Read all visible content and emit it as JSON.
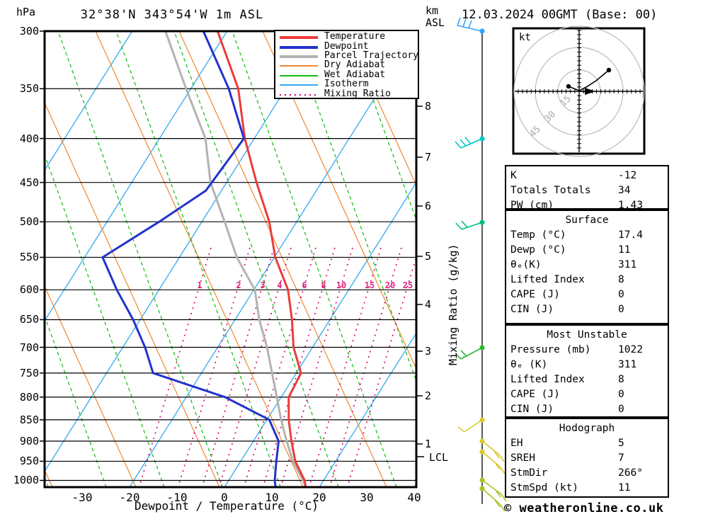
{
  "header": {
    "pressure_unit": "hPa",
    "title": "32°38'N 343°54'W 1m ASL",
    "altitude_unit_line1": "km",
    "altitude_unit_line2": "ASL",
    "date": "12.03.2024 00GMT (Base: 00)"
  },
  "legend": [
    {
      "label": "Temperature",
      "color": "#EE3B3B",
      "width": 4,
      "dash": ""
    },
    {
      "label": "Dewpoint",
      "color": "#2233CC",
      "width": 4,
      "dash": ""
    },
    {
      "label": "Parcel Trajectory",
      "color": "#B3B3B3",
      "width": 4,
      "dash": ""
    },
    {
      "label": "Dry Adiabat",
      "color": "#EE8833",
      "width": 2,
      "dash": ""
    },
    {
      "label": "Wet Adiabat",
      "color": "#11BB11",
      "width": 2,
      "dash": ""
    },
    {
      "label": "Isotherm",
      "color": "#33AAEE",
      "width": 2,
      "dash": ""
    },
    {
      "label": "Mixing Ratio",
      "color": "#D6006F",
      "width": 2,
      "dash": "2,5"
    }
  ],
  "axes": {
    "pressure_ticks": [
      300,
      350,
      400,
      450,
      500,
      550,
      600,
      650,
      700,
      750,
      800,
      850,
      900,
      950,
      1000
    ],
    "temp_ticks": [
      -30,
      -20,
      -10,
      0,
      10,
      20,
      30,
      40
    ],
    "x_label": "Dewpoint / Temperature (°C)",
    "km_ticks": [
      {
        "label": "8",
        "y": 150
      },
      {
        "label": "7",
        "y": 222
      },
      {
        "label": "6",
        "y": 291
      },
      {
        "label": "5",
        "y": 362
      },
      {
        "label": "4",
        "y": 430
      },
      {
        "label": "3",
        "y": 496
      },
      {
        "label": "2",
        "y": 559
      },
      {
        "label": "1",
        "y": 627
      }
    ],
    "lcl": {
      "label": "LCL",
      "y": 645
    },
    "mixing_ratio_axis_label": "Mixing Ratio (g/kg)",
    "mixing_ratio_labels": [
      {
        "v": "1",
        "x": 282
      },
      {
        "v": "2",
        "x": 337
      },
      {
        "v": "3",
        "x": 371
      },
      {
        "v": "4",
        "x": 395
      },
      {
        "v": "6",
        "x": 430
      },
      {
        "v": "8",
        "x": 457
      },
      {
        "v": "10",
        "x": 482
      },
      {
        "v": "15",
        "x": 522
      },
      {
        "v": "20",
        "x": 551
      },
      {
        "v": "25",
        "x": 576
      }
    ]
  },
  "chart_data": {
    "type": "skew-t-log-p",
    "title": "32°38'N 343°54'W 1m ASL",
    "pressure_range_hpa": [
      300,
      1022
    ],
    "temp_axis_range_c": [
      -40,
      40
    ],
    "series": [
      {
        "name": "Temperature",
        "color": "#EE3B3B",
        "points_p_t": [
          [
            300,
            -62
          ],
          [
            350,
            -50
          ],
          [
            400,
            -42
          ],
          [
            450,
            -33.7
          ],
          [
            500,
            -25.8
          ],
          [
            550,
            -19.8
          ],
          [
            600,
            -12.8
          ],
          [
            650,
            -8
          ],
          [
            700,
            -4
          ],
          [
            750,
            1
          ],
          [
            800,
            1.6
          ],
          [
            850,
            4.6
          ],
          [
            900,
            8
          ],
          [
            950,
            11.5
          ],
          [
            1000,
            16
          ],
          [
            1022,
            17.4
          ]
        ]
      },
      {
        "name": "Dewpoint",
        "color": "#2233CC",
        "points_p_t": [
          [
            300,
            -65
          ],
          [
            350,
            -52
          ],
          [
            400,
            -42.2
          ],
          [
            460,
            -43.3
          ],
          [
            500,
            -49
          ],
          [
            550,
            -56.2
          ],
          [
            600,
            -48.9
          ],
          [
            650,
            -41.5
          ],
          [
            700,
            -35.3
          ],
          [
            750,
            -30.2
          ],
          [
            800,
            -11.8
          ],
          [
            850,
            0.5
          ],
          [
            900,
            5.3
          ],
          [
            950,
            7.5
          ],
          [
            1000,
            9.7
          ],
          [
            1022,
            11
          ]
        ]
      },
      {
        "name": "Parcel Trajectory",
        "color": "#B3B3B3",
        "points_p_t": [
          [
            300,
            -73
          ],
          [
            350,
            -61
          ],
          [
            400,
            -50.3
          ],
          [
            450,
            -43.4
          ],
          [
            500,
            -35.2
          ],
          [
            550,
            -27.9
          ],
          [
            600,
            -19.8
          ],
          [
            650,
            -14.9
          ],
          [
            700,
            -9.6
          ],
          [
            750,
            -5.1
          ],
          [
            800,
            -0.9
          ],
          [
            850,
            3
          ],
          [
            900,
            7
          ],
          [
            950,
            11
          ],
          [
            1000,
            15.7
          ],
          [
            1022,
            17.4
          ]
        ]
      }
    ]
  },
  "wind_barbs": [
    {
      "y": 44,
      "color": "#35A2FF",
      "staff": [
        -35,
        -8
      ],
      "feathers": [
        [
          -35,
          -8
        ],
        [
          -27,
          -6
        ],
        [
          -19,
          -4
        ]
      ],
      "fvec": [
        4,
        -11
      ]
    },
    {
      "y": 196,
      "color": "#00C8C8",
      "staff": [
        -30,
        13
      ],
      "feathers": [
        [
          -30,
          13
        ],
        [
          -23,
          10
        ],
        [
          -16,
          7
        ]
      ],
      "fvec": [
        -8,
        -9
      ]
    },
    {
      "y": 314,
      "color": "#00C080",
      "staff": [
        -29,
        10
      ],
      "feathers": [
        [
          -29,
          10
        ],
        [
          -21,
          7
        ]
      ],
      "fvec": [
        -8,
        -9
      ]
    },
    {
      "y": 491,
      "color": "#2DB82D",
      "staff": [
        -30,
        16
      ],
      "feathers": [
        [
          -30,
          16
        ],
        [
          -22,
          12
        ]
      ],
      "fvec": [
        -8,
        -8
      ]
    },
    {
      "y": 593,
      "color": "#D9C92F",
      "staff": [
        -25,
        17
      ],
      "feathers": [
        [
          -25,
          17
        ]
      ],
      "fvec": [
        -9,
        -7
      ]
    },
    {
      "y": 623,
      "color": "#D9C92F",
      "staff": [
        24,
        19
      ],
      "feathers": [
        [
          24,
          19
        ],
        [
          17,
          14
        ]
      ],
      "fvec": [
        7,
        10
      ]
    },
    {
      "y": 638,
      "color": "#D9C92F",
      "staff": [
        25,
        21
      ],
      "feathers": [
        [
          25,
          21
        ],
        [
          18,
          15
        ]
      ],
      "fvec": [
        7,
        10
      ]
    },
    {
      "y": 678,
      "color": "#A4C62A",
      "staff": [
        27,
        20
      ],
      "feathers": [
        [
          27,
          20
        ],
        [
          19,
          14
        ]
      ],
      "fvec": [
        7,
        10
      ]
    },
    {
      "y": 690,
      "color": "#A4C62A",
      "staff": [
        25,
        22
      ],
      "feathers": [
        [
          25,
          22
        ],
        [
          18,
          16
        ]
      ],
      "fvec": [
        7,
        10
      ]
    }
  ],
  "hodograph": {
    "unit_label": "kt",
    "rings": [
      {
        "label": "15",
        "r": 30,
        "lx": 796,
        "ly": 151
      },
      {
        "label": "30",
        "r": 62,
        "lx": 774,
        "ly": 173
      },
      {
        "label": "45",
        "r": 92,
        "lx": 753,
        "ly": 194
      }
    ],
    "trace": [
      [
        803,
        122
      ],
      [
        813,
        126
      ],
      [
        818,
        128
      ],
      [
        828,
        123
      ],
      [
        842,
        114
      ],
      [
        860,
        99
      ]
    ],
    "trace_dots": [
      [
        803,
        122
      ],
      [
        860,
        99
      ]
    ],
    "storm_arrow": {
      "tip": [
        841,
        129
      ],
      "base1": [
        826,
        124
      ],
      "base2": [
        826,
        134
      ]
    }
  },
  "stats": {
    "indices": {
      "rows": [
        [
          "K",
          "-12"
        ],
        [
          "Totals Totals",
          "34"
        ],
        [
          "PW (cm)",
          "1.43"
        ]
      ]
    },
    "surface": {
      "title": "Surface",
      "rows": [
        [
          "Temp (°C)",
          "17.4"
        ],
        [
          "Dewp (°C)",
          "11"
        ],
        [
          "θₑ(K)",
          "311"
        ],
        [
          "Lifted Index",
          "8"
        ],
        [
          "CAPE (J)",
          "0"
        ],
        [
          "CIN (J)",
          "0"
        ]
      ]
    },
    "most_unstable": {
      "title": "Most Unstable",
      "rows": [
        [
          "Pressure (mb)",
          "1022"
        ],
        [
          "θₑ (K)",
          "311"
        ],
        [
          "Lifted Index",
          "8"
        ],
        [
          "CAPE (J)",
          "0"
        ],
        [
          "CIN (J)",
          "0"
        ]
      ]
    },
    "hodograph_table": {
      "title": "Hodograph",
      "rows": [
        [
          "EH",
          "5"
        ],
        [
          "SREH",
          "7"
        ],
        [
          "StmDir",
          "266°"
        ],
        [
          "StmSpd (kt)",
          "11"
        ]
      ]
    }
  },
  "footer": {
    "copyright": "© weatheronline.co.uk"
  },
  "colors": {
    "isotherm": "#33AAEE",
    "dry_adiabat": "#EE8833",
    "wet_adiabat": "#11BB11",
    "mixing_ratio": "#D6006F",
    "grid": "#000000",
    "temperature": "#EE3B3B",
    "dewpoint": "#2233CC",
    "parcel": "#B3B3B3"
  }
}
